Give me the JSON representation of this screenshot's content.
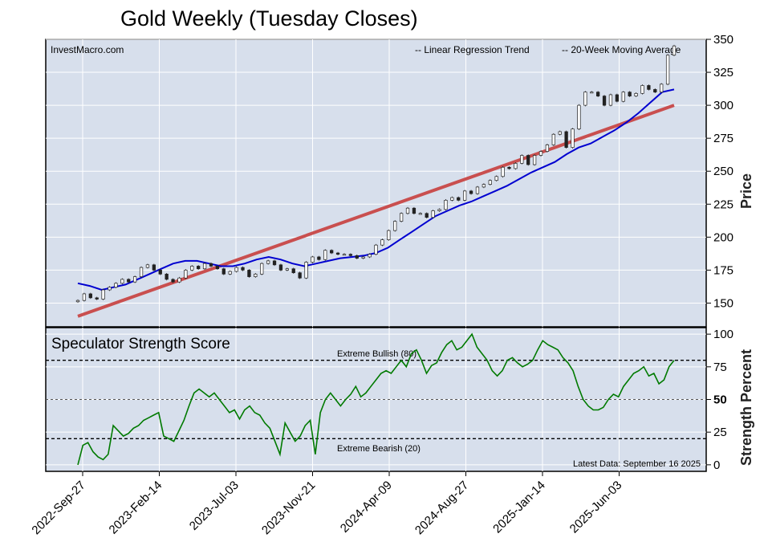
{
  "chart_data": [
    {
      "type": "candlestick",
      "title": "Gold Weekly (Tuesday Closes)",
      "source_label": "InvestMacro.com",
      "ylabel": "Price",
      "ylim": [
        132,
        350
      ],
      "yticks": [
        150,
        175,
        200,
        225,
        250,
        275,
        300,
        325,
        350
      ],
      "x_tick_labels": [
        "2022-Sep-27",
        "2023-Feb-14",
        "2023-Jul-03",
        "2023-Nov-21",
        "2024-Apr-09",
        "2024-Aug-27",
        "2025-Jan-14",
        "2025-Jun-03"
      ],
      "legend": [
        {
          "label": "-- Linear Regression Trend",
          "color": "#8b1a1a"
        },
        {
          "label": "-- 20-Week Moving Average",
          "color": "#0000cc"
        }
      ],
      "series": [
        {
          "name": "Gold",
          "closes": [
            152,
            157,
            154,
            153,
            160,
            162,
            165,
            168,
            166,
            170,
            177,
            179,
            175,
            172,
            168,
            166,
            169,
            175,
            178,
            176,
            180,
            178,
            176,
            172,
            174,
            177,
            175,
            170,
            172,
            180,
            182,
            179,
            175,
            176,
            173,
            169,
            181,
            185,
            183,
            190,
            188,
            187,
            187,
            186,
            184,
            185,
            187,
            194,
            198,
            205,
            212,
            218,
            222,
            218,
            218,
            215,
            220,
            221,
            228,
            230,
            228,
            235,
            233,
            238,
            240,
            243,
            246,
            253,
            252,
            256,
            262,
            255,
            262,
            265,
            270,
            278,
            280,
            268,
            282,
            300,
            310,
            310,
            307,
            300,
            308,
            303,
            310,
            307,
            309,
            315,
            312,
            310,
            316,
            338,
            345
          ]
        },
        {
          "name": "Linear Regression Trend",
          "start": 140,
          "end": 300
        },
        {
          "name": "20-Week Moving Average",
          "values": [
            165,
            163,
            160,
            162,
            164,
            168,
            172,
            176,
            180,
            182,
            182,
            180,
            178,
            178,
            180,
            183,
            185,
            183,
            180,
            178,
            180,
            182,
            184,
            185,
            186,
            188,
            192,
            198,
            204,
            210,
            216,
            220,
            224,
            227,
            231,
            235,
            239,
            244,
            249,
            253,
            257,
            263,
            268,
            271,
            276,
            281,
            287,
            294,
            302,
            310,
            312
          ]
        }
      ]
    },
    {
      "type": "line",
      "title": "Speculator Strength Score",
      "ylabel": "Strength Percent",
      "ylim": [
        -5,
        105
      ],
      "yticks": [
        0,
        25,
        50,
        75,
        100
      ],
      "series": [
        {
          "name": "Speculator Strength Score",
          "values": [
            0,
            15,
            17,
            10,
            6,
            4,
            8,
            30,
            26,
            22,
            24,
            28,
            30,
            34,
            36,
            38,
            40,
            22,
            20,
            18,
            26,
            34,
            45,
            55,
            58,
            55,
            52,
            55,
            50,
            45,
            40,
            42,
            35,
            42,
            45,
            40,
            38,
            32,
            28,
            18,
            8,
            32,
            25,
            18,
            22,
            30,
            34,
            8,
            40,
            50,
            55,
            50,
            45,
            50,
            54,
            60,
            52,
            55,
            60,
            65,
            70,
            72,
            70,
            75,
            80,
            75,
            85,
            88,
            80,
            70,
            76,
            78,
            86,
            92,
            95,
            88,
            90,
            95,
            100,
            90,
            85,
            80,
            72,
            68,
            72,
            80,
            82,
            78,
            75,
            77,
            80,
            88,
            95,
            92,
            90,
            88,
            82,
            78,
            72,
            60,
            50,
            45,
            42,
            42,
            44,
            50,
            54,
            52,
            60,
            65,
            70,
            72,
            75,
            68,
            70,
            62,
            65,
            75,
            80
          ]
        }
      ],
      "reference_lines": [
        {
          "label": "Extreme Bullish (80)",
          "value": 80
        },
        {
          "label": "Extreme Bearish (20)",
          "value": 20
        },
        {
          "value": 50
        }
      ],
      "annotation": "Latest Data: September 16 2025"
    }
  ]
}
